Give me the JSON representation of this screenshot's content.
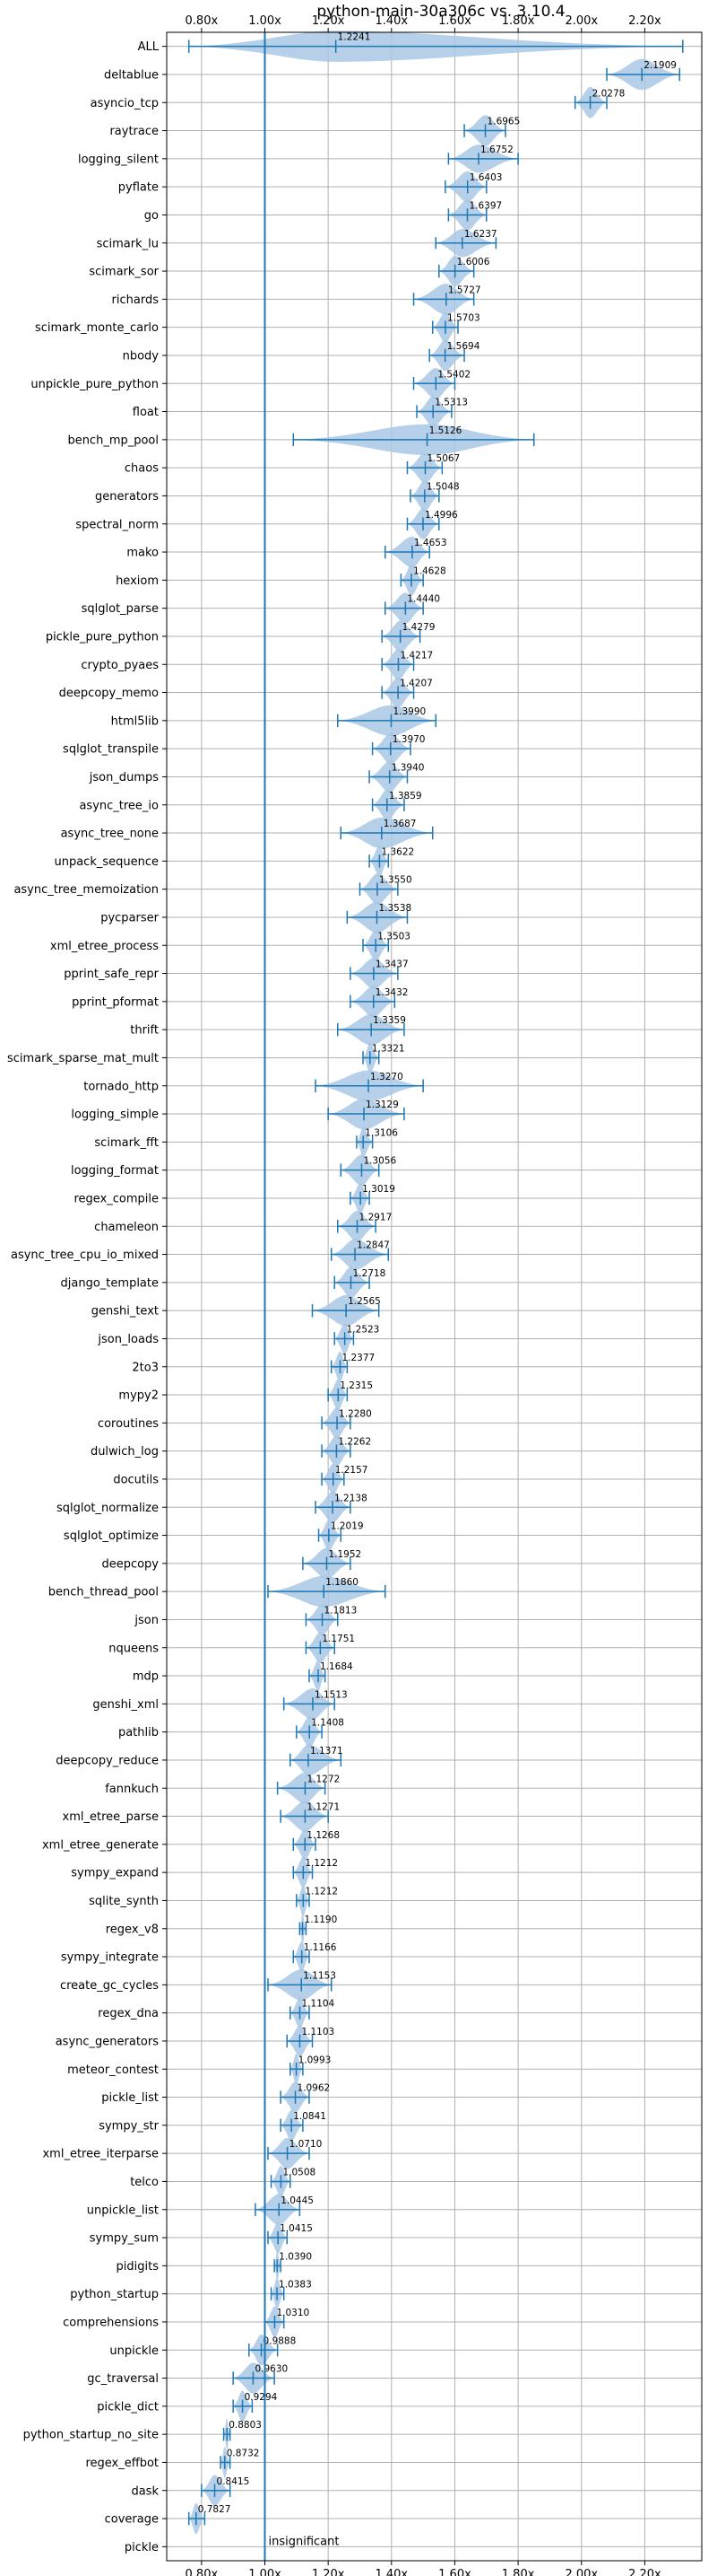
{
  "chart_data": {
    "type": "violin",
    "title": "python-main-30a306c vs. 3.10.4",
    "xlabel": "",
    "ylabel": "",
    "xlim": [
      0.69,
      2.38
    ],
    "xticks": [
      0.8,
      1.0,
      1.2,
      1.4,
      1.6,
      1.8,
      2.0,
      2.2
    ],
    "xtick_labels": [
      "0.80x",
      "1.00x",
      "1.20x",
      "1.40x",
      "1.60x",
      "1.80x",
      "2.00x",
      "2.20x"
    ],
    "reference_line": 1.0,
    "grid": true,
    "colors": {
      "violin": "#a8c8e4",
      "marker": "#1f77b4",
      "reference": "#1f77b4"
    },
    "annotation": "insignificant",
    "annotation_benchmark": "pickle",
    "benchmarks": [
      {
        "name": "ALL",
        "label": "1.2241",
        "median": 1.2241,
        "min": 0.76,
        "max": 2.32,
        "width": 0.55
      },
      {
        "name": "deltablue",
        "label": "2.1909",
        "median": 2.1909,
        "min": 2.08,
        "max": 2.31,
        "width": 0.55
      },
      {
        "name": "asyncio_tcp",
        "label": "2.0278",
        "median": 2.0278,
        "min": 1.98,
        "max": 2.08,
        "width": 0.55
      },
      {
        "name": "raytrace",
        "label": "1.6965",
        "median": 1.6965,
        "min": 1.63,
        "max": 1.76,
        "width": 0.55
      },
      {
        "name": "logging_silent",
        "label": "1.6752",
        "median": 1.6752,
        "min": 1.58,
        "max": 1.8,
        "width": 0.5
      },
      {
        "name": "pyflate",
        "label": "1.6403",
        "median": 1.6403,
        "min": 1.57,
        "max": 1.7,
        "width": 0.55
      },
      {
        "name": "go",
        "label": "1.6397",
        "median": 1.6397,
        "min": 1.58,
        "max": 1.7,
        "width": 0.55
      },
      {
        "name": "scimark_lu",
        "label": "1.6237",
        "median": 1.6237,
        "min": 1.54,
        "max": 1.73,
        "width": 0.5
      },
      {
        "name": "scimark_sor",
        "label": "1.6006",
        "median": 1.6006,
        "min": 1.55,
        "max": 1.66,
        "width": 0.55
      },
      {
        "name": "richards",
        "label": "1.5727",
        "median": 1.5727,
        "min": 1.47,
        "max": 1.66,
        "width": 0.55
      },
      {
        "name": "scimark_monte_carlo",
        "label": "1.5703",
        "median": 1.5703,
        "min": 1.53,
        "max": 1.61,
        "width": 0.55
      },
      {
        "name": "nbody",
        "label": "1.5694",
        "median": 1.5694,
        "min": 1.52,
        "max": 1.63,
        "width": 0.55
      },
      {
        "name": "unpickle_pure_python",
        "label": "1.5402",
        "median": 1.5402,
        "min": 1.47,
        "max": 1.6,
        "width": 0.55
      },
      {
        "name": "float",
        "label": "1.5313",
        "median": 1.5313,
        "min": 1.48,
        "max": 1.59,
        "width": 0.55
      },
      {
        "name": "bench_mp_pool",
        "label": "1.5126",
        "median": 1.5126,
        "min": 1.09,
        "max": 1.85,
        "width": 0.55
      },
      {
        "name": "chaos",
        "label": "1.5067",
        "median": 1.5067,
        "min": 1.45,
        "max": 1.56,
        "width": 0.55
      },
      {
        "name": "generators",
        "label": "1.5048",
        "median": 1.5048,
        "min": 1.46,
        "max": 1.55,
        "width": 0.55
      },
      {
        "name": "spectral_norm",
        "label": "1.4996",
        "median": 1.4996,
        "min": 1.45,
        "max": 1.55,
        "width": 0.55
      },
      {
        "name": "mako",
        "label": "1.4653",
        "median": 1.4653,
        "min": 1.38,
        "max": 1.52,
        "width": 0.55
      },
      {
        "name": "hexiom",
        "label": "1.4628",
        "median": 1.4628,
        "min": 1.43,
        "max": 1.5,
        "width": 0.55
      },
      {
        "name": "sqlglot_parse",
        "label": "1.4440",
        "median": 1.444,
        "min": 1.38,
        "max": 1.5,
        "width": 0.55
      },
      {
        "name": "pickle_pure_python",
        "label": "1.4279",
        "median": 1.4279,
        "min": 1.37,
        "max": 1.49,
        "width": 0.55
      },
      {
        "name": "crypto_pyaes",
        "label": "1.4217",
        "median": 1.4217,
        "min": 1.37,
        "max": 1.47,
        "width": 0.55
      },
      {
        "name": "deepcopy_memo",
        "label": "1.4207",
        "median": 1.4207,
        "min": 1.37,
        "max": 1.47,
        "width": 0.55
      },
      {
        "name": "html5lib",
        "label": "1.3990",
        "median": 1.399,
        "min": 1.23,
        "max": 1.54,
        "width": 0.55
      },
      {
        "name": "sqlglot_transpile",
        "label": "1.3970",
        "median": 1.397,
        "min": 1.34,
        "max": 1.46,
        "width": 0.55
      },
      {
        "name": "json_dumps",
        "label": "1.3940",
        "median": 1.394,
        "min": 1.33,
        "max": 1.45,
        "width": 0.55
      },
      {
        "name": "async_tree_io",
        "label": "1.3859",
        "median": 1.3859,
        "min": 1.34,
        "max": 1.44,
        "width": 0.55
      },
      {
        "name": "async_tree_none",
        "label": "1.3687",
        "median": 1.3687,
        "min": 1.24,
        "max": 1.53,
        "width": 0.55
      },
      {
        "name": "unpack_sequence",
        "label": "1.3622",
        "median": 1.3622,
        "min": 1.33,
        "max": 1.39,
        "width": 0.55
      },
      {
        "name": "async_tree_memoization",
        "label": "1.3550",
        "median": 1.355,
        "min": 1.3,
        "max": 1.42,
        "width": 0.55
      },
      {
        "name": "pycparser",
        "label": "1.3538",
        "median": 1.3538,
        "min": 1.26,
        "max": 1.45,
        "width": 0.55
      },
      {
        "name": "xml_etree_process",
        "label": "1.3503",
        "median": 1.3503,
        "min": 1.31,
        "max": 1.39,
        "width": 0.55
      },
      {
        "name": "pprint_safe_repr",
        "label": "1.3437",
        "median": 1.3437,
        "min": 1.27,
        "max": 1.42,
        "width": 0.55
      },
      {
        "name": "pprint_pformat",
        "label": "1.3432",
        "median": 1.3432,
        "min": 1.27,
        "max": 1.41,
        "width": 0.55
      },
      {
        "name": "thrift",
        "label": "1.3359",
        "median": 1.3359,
        "min": 1.23,
        "max": 1.44,
        "width": 0.55
      },
      {
        "name": "scimark_sparse_mat_mult",
        "label": "1.3321",
        "median": 1.3321,
        "min": 1.31,
        "max": 1.36,
        "width": 0.55
      },
      {
        "name": "tornado_http",
        "label": "1.3270",
        "median": 1.327,
        "min": 1.16,
        "max": 1.5,
        "width": 0.55
      },
      {
        "name": "logging_simple",
        "label": "1.3129",
        "median": 1.3129,
        "min": 1.2,
        "max": 1.44,
        "width": 0.55
      },
      {
        "name": "scimark_fft",
        "label": "1.3106",
        "median": 1.3106,
        "min": 1.29,
        "max": 1.34,
        "width": 0.55
      },
      {
        "name": "logging_format",
        "label": "1.3056",
        "median": 1.3056,
        "min": 1.24,
        "max": 1.36,
        "width": 0.55
      },
      {
        "name": "regex_compile",
        "label": "1.3019",
        "median": 1.3019,
        "min": 1.27,
        "max": 1.33,
        "width": 0.55
      },
      {
        "name": "chameleon",
        "label": "1.2917",
        "median": 1.2917,
        "min": 1.23,
        "max": 1.35,
        "width": 0.55
      },
      {
        "name": "async_tree_cpu_io_mixed",
        "label": "1.2847",
        "median": 1.2847,
        "min": 1.21,
        "max": 1.39,
        "width": 0.55
      },
      {
        "name": "django_template",
        "label": "1.2718",
        "median": 1.2718,
        "min": 1.22,
        "max": 1.33,
        "width": 0.55
      },
      {
        "name": "genshi_text",
        "label": "1.2565",
        "median": 1.2565,
        "min": 1.15,
        "max": 1.36,
        "width": 0.55
      },
      {
        "name": "json_loads",
        "label": "1.2523",
        "median": 1.2523,
        "min": 1.22,
        "max": 1.28,
        "width": 0.55
      },
      {
        "name": "2to3",
        "label": "1.2377",
        "median": 1.2377,
        "min": 1.21,
        "max": 1.26,
        "width": 0.55
      },
      {
        "name": "mypy2",
        "label": "1.2315",
        "median": 1.2315,
        "min": 1.2,
        "max": 1.26,
        "width": 0.55
      },
      {
        "name": "coroutines",
        "label": "1.2280",
        "median": 1.228,
        "min": 1.18,
        "max": 1.27,
        "width": 0.55
      },
      {
        "name": "dulwich_log",
        "label": "1.2262",
        "median": 1.2262,
        "min": 1.18,
        "max": 1.27,
        "width": 0.55
      },
      {
        "name": "docutils",
        "label": "1.2157",
        "median": 1.2157,
        "min": 1.18,
        "max": 1.25,
        "width": 0.55
      },
      {
        "name": "sqlglot_normalize",
        "label": "1.2138",
        "median": 1.2138,
        "min": 1.16,
        "max": 1.27,
        "width": 0.55
      },
      {
        "name": "sqlglot_optimize",
        "label": "1.2019",
        "median": 1.2019,
        "min": 1.17,
        "max": 1.24,
        "width": 0.55
      },
      {
        "name": "deepcopy",
        "label": "1.1952",
        "median": 1.1952,
        "min": 1.12,
        "max": 1.27,
        "width": 0.55
      },
      {
        "name": "bench_thread_pool",
        "label": "1.1860",
        "median": 1.186,
        "min": 1.01,
        "max": 1.38,
        "width": 0.55
      },
      {
        "name": "json",
        "label": "1.1813",
        "median": 1.1813,
        "min": 1.13,
        "max": 1.23,
        "width": 0.55
      },
      {
        "name": "nqueens",
        "label": "1.1751",
        "median": 1.1751,
        "min": 1.13,
        "max": 1.22,
        "width": 0.55
      },
      {
        "name": "mdp",
        "label": "1.1684",
        "median": 1.1684,
        "min": 1.14,
        "max": 1.19,
        "width": 0.55
      },
      {
        "name": "genshi_xml",
        "label": "1.1513",
        "median": 1.1513,
        "min": 1.06,
        "max": 1.22,
        "width": 0.55
      },
      {
        "name": "pathlib",
        "label": "1.1408",
        "median": 1.1408,
        "min": 1.1,
        "max": 1.18,
        "width": 0.55
      },
      {
        "name": "deepcopy_reduce",
        "label": "1.1371",
        "median": 1.1371,
        "min": 1.08,
        "max": 1.24,
        "width": 0.55
      },
      {
        "name": "fannkuch",
        "label": "1.1272",
        "median": 1.1272,
        "min": 1.04,
        "max": 1.19,
        "width": 0.55
      },
      {
        "name": "xml_etree_parse",
        "label": "1.1271",
        "median": 1.1271,
        "min": 1.05,
        "max": 1.2,
        "width": 0.55
      },
      {
        "name": "xml_etree_generate",
        "label": "1.1268",
        "median": 1.1268,
        "min": 1.09,
        "max": 1.16,
        "width": 0.55
      },
      {
        "name": "sympy_expand",
        "label": "1.1212",
        "median": 1.1212,
        "min": 1.09,
        "max": 1.15,
        "width": 0.55
      },
      {
        "name": "sqlite_synth",
        "label": "1.1212",
        "median": 1.1212,
        "min": 1.1,
        "max": 1.14,
        "width": 0.55
      },
      {
        "name": "regex_v8",
        "label": "1.1190",
        "median": 1.119,
        "min": 1.11,
        "max": 1.13,
        "width": 0.55
      },
      {
        "name": "sympy_integrate",
        "label": "1.1166",
        "median": 1.1166,
        "min": 1.09,
        "max": 1.14,
        "width": 0.55
      },
      {
        "name": "create_gc_cycles",
        "label": "1.1153",
        "median": 1.1153,
        "min": 1.01,
        "max": 1.21,
        "width": 0.55
      },
      {
        "name": "regex_dna",
        "label": "1.1104",
        "median": 1.1104,
        "min": 1.08,
        "max": 1.14,
        "width": 0.55
      },
      {
        "name": "async_generators",
        "label": "1.1103",
        "median": 1.1103,
        "min": 1.07,
        "max": 1.15,
        "width": 0.55
      },
      {
        "name": "meteor_contest",
        "label": "1.0993",
        "median": 1.0993,
        "min": 1.08,
        "max": 1.12,
        "width": 0.55
      },
      {
        "name": "pickle_list",
        "label": "1.0962",
        "median": 1.0962,
        "min": 1.05,
        "max": 1.14,
        "width": 0.55
      },
      {
        "name": "sympy_str",
        "label": "1.0841",
        "median": 1.0841,
        "min": 1.05,
        "max": 1.12,
        "width": 0.55
      },
      {
        "name": "xml_etree_iterparse",
        "label": "1.0710",
        "median": 1.071,
        "min": 1.01,
        "max": 1.14,
        "width": 0.55
      },
      {
        "name": "telco",
        "label": "1.0508",
        "median": 1.0508,
        "min": 1.02,
        "max": 1.08,
        "width": 0.55
      },
      {
        "name": "unpickle_list",
        "label": "1.0445",
        "median": 1.0445,
        "min": 0.97,
        "max": 1.11,
        "width": 0.55
      },
      {
        "name": "sympy_sum",
        "label": "1.0415",
        "median": 1.0415,
        "min": 1.01,
        "max": 1.07,
        "width": 0.55
      },
      {
        "name": "pidigits",
        "label": "1.0390",
        "median": 1.039,
        "min": 1.03,
        "max": 1.05,
        "width": 0.55
      },
      {
        "name": "python_startup",
        "label": "1.0383",
        "median": 1.0383,
        "min": 1.02,
        "max": 1.06,
        "width": 0.55
      },
      {
        "name": "comprehensions",
        "label": "1.0310",
        "median": 1.031,
        "min": 1.0,
        "max": 1.06,
        "width": 0.55
      },
      {
        "name": "unpickle",
        "label": "0.9888",
        "median": 0.9888,
        "min": 0.95,
        "max": 1.04,
        "width": 0.55
      },
      {
        "name": "gc_traversal",
        "label": "0.9630",
        "median": 0.963,
        "min": 0.9,
        "max": 1.03,
        "width": 0.55
      },
      {
        "name": "pickle_dict",
        "label": "0.9294",
        "median": 0.9294,
        "min": 0.9,
        "max": 0.96,
        "width": 0.55
      },
      {
        "name": "python_startup_no_site",
        "label": "0.8803",
        "median": 0.8803,
        "min": 0.87,
        "max": 0.89,
        "width": 0.55
      },
      {
        "name": "regex_effbot",
        "label": "0.8732",
        "median": 0.8732,
        "min": 0.86,
        "max": 0.89,
        "width": 0.55
      },
      {
        "name": "dask",
        "label": "0.8415",
        "median": 0.8415,
        "min": 0.8,
        "max": 0.89,
        "width": 0.55
      },
      {
        "name": "coverage",
        "label": "0.7827",
        "median": 0.7827,
        "min": 0.76,
        "max": 0.81,
        "width": 0.55
      },
      {
        "name": "pickle",
        "label": "",
        "median": null,
        "min": null,
        "max": null,
        "width": 0
      }
    ]
  }
}
